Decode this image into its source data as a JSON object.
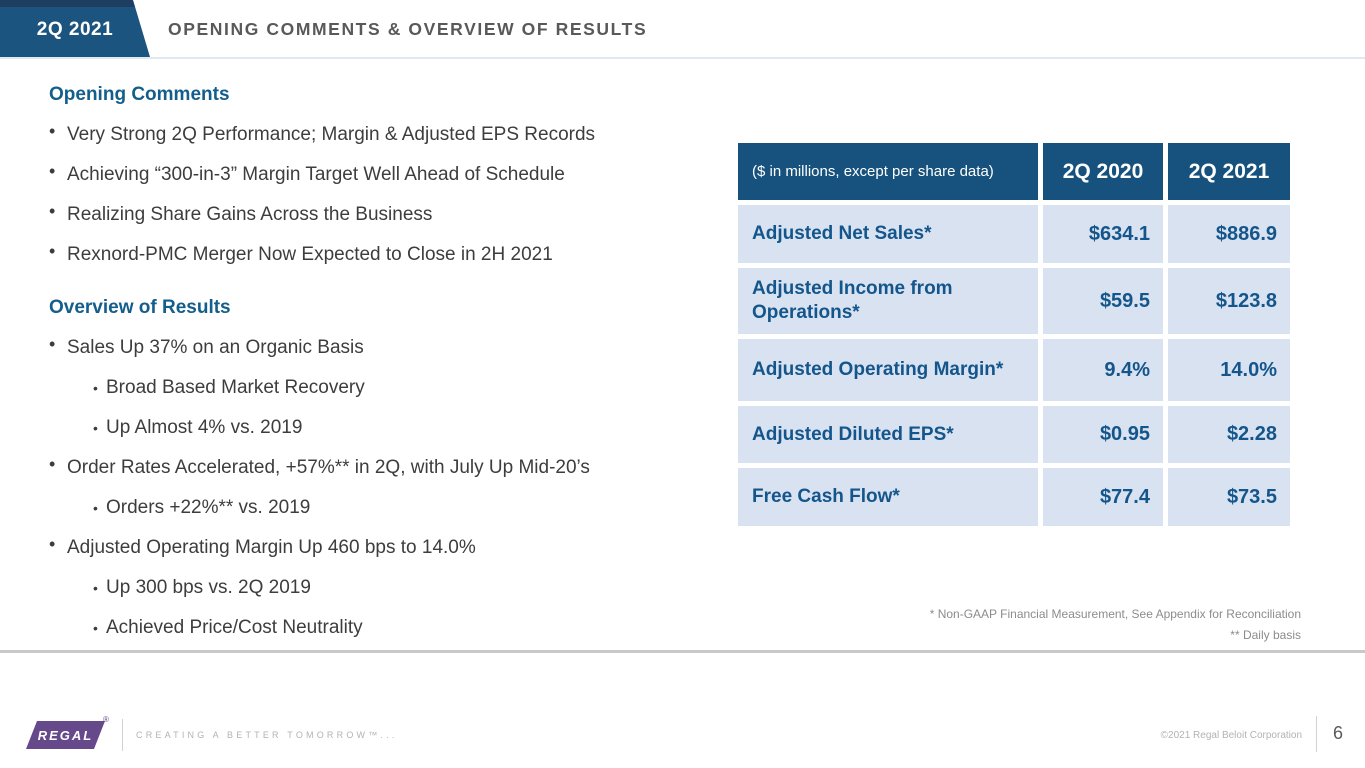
{
  "slide": {
    "header": {
      "badge_label": "2Q 2021",
      "title": "OPENING COMMENTS & OVERVIEW OF RESULTS"
    },
    "bullet_glyph": "•",
    "sections": [
      {
        "heading": "Opening Comments",
        "items": [
          {
            "level": 1,
            "text": "Very Strong 2Q Performance; Margin & Adjusted EPS Records"
          },
          {
            "level": 1,
            "text": "Achieving “300-in-3” Margin Target Well Ahead of Schedule"
          },
          {
            "level": 1,
            "text": "Realizing Share Gains Across the Business"
          },
          {
            "level": 1,
            "text": "Rexnord-PMC Merger Now Expected to Close in 2H 2021"
          }
        ]
      },
      {
        "heading": "Overview of Results",
        "items": [
          {
            "level": 1,
            "text": "Sales Up 37% on an Organic Basis"
          },
          {
            "level": 2,
            "text": "Broad Based Market Recovery"
          },
          {
            "level": 2,
            "text": "Up Almost 4% vs. 2019"
          },
          {
            "level": 1,
            "text": "Order Rates Accelerated, +57%** in 2Q, with July Up Mid-20’s"
          },
          {
            "level": 2,
            "text": "Orders +22%** vs. 2019"
          },
          {
            "level": 1,
            "text": "Adjusted Operating Margin Up 460 bps to 14.0%"
          },
          {
            "level": 2,
            "text": "Up 300 bps vs. 2Q 2019"
          },
          {
            "level": 2,
            "text": "Achieved Price/Cost Neutrality"
          }
        ]
      }
    ],
    "table": {
      "header": {
        "label": "($ in millions, except per share data)",
        "col_2020": "2Q 2020",
        "col_2021": "2Q 2021"
      },
      "rows": [
        {
          "label": "Adjusted Net Sales*",
          "q2_2020": "$634.1",
          "q2_2021": "$886.9"
        },
        {
          "label": "Adjusted Income from Operations*",
          "q2_2020": "$59.5",
          "q2_2021": "$123.8"
        },
        {
          "label": "Adjusted Operating Margin*",
          "q2_2020": "9.4%",
          "q2_2021": "14.0%"
        },
        {
          "label": "Adjusted Diluted EPS*",
          "q2_2020": "$0.95",
          "q2_2021": "$2.28"
        },
        {
          "label": "Free Cash Flow*",
          "q2_2020": "$77.4",
          "q2_2021": "$73.5"
        }
      ]
    },
    "footnotes": {
      "note1": "* Non-GAAP Financial Measurement, See Appendix for Reconciliation",
      "note2": "** Daily basis"
    },
    "footer": {
      "logo_text": "REGAL",
      "registered_mark": "®",
      "tagline": "CREATING A BETTER TOMORROW™...",
      "copyright": "©2021 Regal Beloit Corporation",
      "page_number": "6"
    },
    "colors": {
      "badge_blue": "#1b547f",
      "badge_top_navy": "#1d3e60",
      "table_header_blue": "#16527d",
      "table_row_blue": "#d9e2f0",
      "table_text_blue": "#14568c",
      "heading_blue": "#135e8c",
      "body_text_gray": "#3d3d3d",
      "title_gray": "#595959",
      "footnote_gray": "#8c8c8c",
      "logo_purple": "#66498a",
      "divider_gray": "#c9c9c9"
    }
  }
}
